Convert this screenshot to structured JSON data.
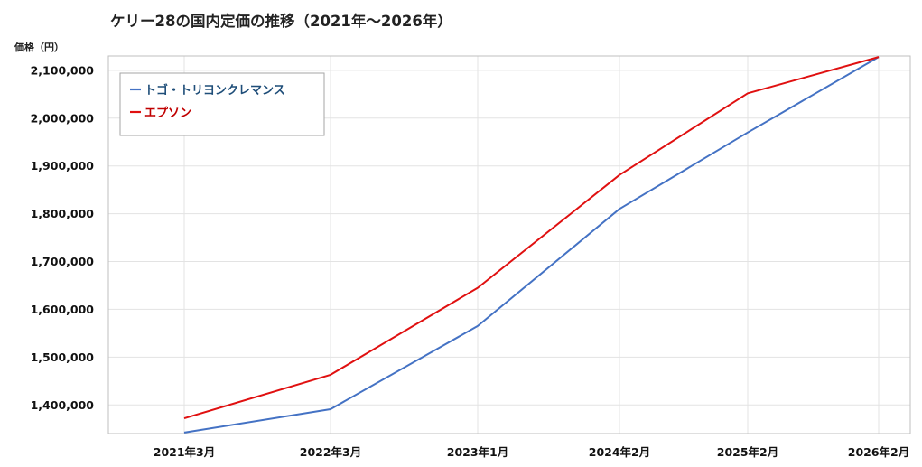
{
  "chart_data": {
    "type": "line",
    "title": "ケリー28の国内定価の推移（2021年～2026年）",
    "ylabel": "価格（円）",
    "xlabel": "",
    "categories": [
      "2021年3月",
      "2022年3月",
      "2023年1月",
      "2024年2月",
      "2025年2月",
      "2026年2月"
    ],
    "ylim": [
      1340000,
      2130000
    ],
    "yticks": [
      1400000,
      1500000,
      1600000,
      1700000,
      1800000,
      1900000,
      2000000,
      2100000
    ],
    "ytick_labels": [
      "1,400,000",
      "1,500,000",
      "1,600,000",
      "1,700,000",
      "1,800,000",
      "1,900,000",
      "2,000,000",
      "2,100,000"
    ],
    "grid": true,
    "legend_position": "top-left",
    "series": [
      {
        "name": "トゴ・トリヨンクレマンス",
        "color": "#4472C4",
        "label_color": "#1F4E79",
        "values": [
          1342000,
          1391000,
          1565000,
          1810000,
          1970000,
          2128000
        ]
      },
      {
        "name": "エプソン",
        "color": "#E01010",
        "label_color": "#C00000",
        "values": [
          1372000,
          1463000,
          1645000,
          1881000,
          2052000,
          2128000
        ]
      }
    ]
  }
}
